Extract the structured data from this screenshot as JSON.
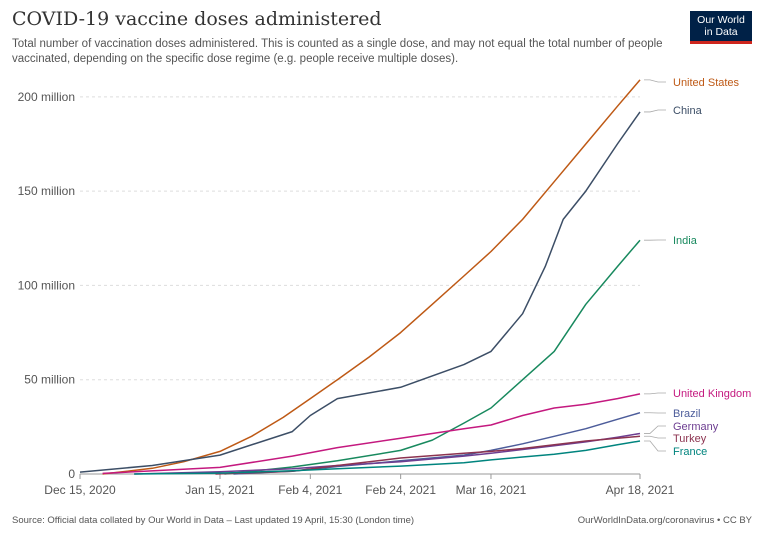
{
  "header": {
    "title": "COVID-19 vaccine doses administered",
    "subtitle": "Total number of vaccination doses administered. This is counted as a single dose, and may not equal the total number of people vaccinated, depending on the specific dose regime (e.g. people receive multiple doses).",
    "logo_line1": "Our World",
    "logo_line2": "in Data"
  },
  "footer": {
    "source": "Source: Official data collated by Our World in Data – Last updated 19 April, 15:30 (London time)",
    "credit": "OurWorldInData.org/coronavirus • CC BY"
  },
  "chart_data": {
    "type": "line",
    "title": "COVID-19 vaccine doses administered",
    "xlabel": "",
    "ylabel": "",
    "ylim": [
      0,
      210000000
    ],
    "grid": "horizontal dashed",
    "legend": "labels at right end of lines",
    "x_ticks": [
      "Dec 15, 2020",
      "Jan 15, 2021",
      "Feb 4, 2021",
      "Feb 24, 2021",
      "Mar 16, 2021",
      "Apr 18, 2021"
    ],
    "y_ticks": [
      "0",
      "50 million",
      "100 million",
      "150 million",
      "200 million"
    ],
    "y_tick_values": [
      0,
      50000000,
      100000000,
      150000000,
      200000000
    ],
    "series": [
      {
        "name": "United States",
        "color": "#be5915",
        "x": [
          "2020-12-20",
          "2020-12-31",
          "2021-01-07",
          "2021-01-15",
          "2021-01-22",
          "2021-01-29",
          "2021-02-04",
          "2021-02-10",
          "2021-02-17",
          "2021-02-24",
          "2021-03-03",
          "2021-03-10",
          "2021-03-16",
          "2021-03-23",
          "2021-03-30",
          "2021-04-06",
          "2021-04-13",
          "2021-04-18"
        ],
        "y": [
          0,
          3000000,
          6500000,
          12000000,
          20000000,
          30000000,
          40000000,
          50000000,
          62000000,
          75000000,
          90000000,
          105000000,
          118000000,
          135000000,
          155000000,
          175000000,
          195000000,
          209000000
        ]
      },
      {
        "name": "China",
        "color": "#3c4e66",
        "x": [
          "2020-12-15",
          "2020-12-31",
          "2021-01-15",
          "2021-01-31",
          "2021-02-04",
          "2021-02-10",
          "2021-02-24",
          "2021-03-10",
          "2021-03-16",
          "2021-03-23",
          "2021-03-28",
          "2021-04-01",
          "2021-04-06",
          "2021-04-13",
          "2021-04-18"
        ],
        "y": [
          1000000,
          4500000,
          10000000,
          22500000,
          31000000,
          40000000,
          46000000,
          58000000,
          65000000,
          85000000,
          110000000,
          135000000,
          150000000,
          175000000,
          192000000
        ]
      },
      {
        "name": "India",
        "color": "#18895e",
        "x": [
          "2021-01-16",
          "2021-01-31",
          "2021-02-10",
          "2021-02-24",
          "2021-03-03",
          "2021-03-10",
          "2021-03-16",
          "2021-03-23",
          "2021-03-30",
          "2021-04-06",
          "2021-04-13",
          "2021-04-18"
        ],
        "y": [
          0,
          3700000,
          7000000,
          12500000,
          18000000,
          27000000,
          35000000,
          50000000,
          65000000,
          90000000,
          110000000,
          124000000
        ]
      },
      {
        "name": "United Kingdom",
        "color": "#c4197f",
        "x": [
          "2020-12-20",
          "2021-01-15",
          "2021-01-31",
          "2021-02-10",
          "2021-02-24",
          "2021-03-10",
          "2021-03-16",
          "2021-03-23",
          "2021-03-30",
          "2021-04-06",
          "2021-04-13",
          "2021-04-18"
        ],
        "y": [
          300000,
          3500000,
          9500000,
          14000000,
          19000000,
          24000000,
          26000000,
          31000000,
          35000000,
          37000000,
          40000000,
          42500000
        ]
      },
      {
        "name": "Brazil",
        "color": "#4c5c9a",
        "x": [
          "2021-01-18",
          "2021-01-31",
          "2021-02-10",
          "2021-02-24",
          "2021-03-10",
          "2021-03-16",
          "2021-03-23",
          "2021-03-30",
          "2021-04-06",
          "2021-04-13",
          "2021-04-18"
        ],
        "y": [
          0,
          1500000,
          4000000,
          7000000,
          10000000,
          12500000,
          16000000,
          20000000,
          24000000,
          29000000,
          32500000
        ]
      },
      {
        "name": "Germany",
        "color": "#6d3e91",
        "x": [
          "2020-12-27",
          "2021-01-15",
          "2021-01-31",
          "2021-02-10",
          "2021-02-24",
          "2021-03-10",
          "2021-03-16",
          "2021-03-23",
          "2021-03-30",
          "2021-04-06",
          "2021-04-13",
          "2021-04-18"
        ],
        "y": [
          0,
          1200000,
          2800000,
          4500000,
          6500000,
          9500000,
          11000000,
          13000000,
          15000000,
          17000000,
          19500000,
          21500000
        ]
      },
      {
        "name": "Turkey",
        "color": "#8c3350",
        "x": [
          "2021-01-14",
          "2021-01-31",
          "2021-02-10",
          "2021-02-24",
          "2021-03-10",
          "2021-03-16",
          "2021-03-23",
          "2021-03-30",
          "2021-04-06",
          "2021-04-13",
          "2021-04-18"
        ],
        "y": [
          0,
          1500000,
          4500000,
          8500000,
          11000000,
          12000000,
          13500000,
          15500000,
          17500000,
          19000000,
          20000000
        ]
      },
      {
        "name": "France",
        "color": "#00847e",
        "x": [
          "2020-12-27",
          "2021-01-15",
          "2021-01-31",
          "2021-02-10",
          "2021-02-24",
          "2021-03-10",
          "2021-03-16",
          "2021-03-23",
          "2021-03-30",
          "2021-04-06",
          "2021-04-13",
          "2021-04-18"
        ],
        "y": [
          0,
          500000,
          1700000,
          2800000,
          4200000,
          6000000,
          7500000,
          9000000,
          10500000,
          12500000,
          15500000,
          17500000
        ]
      }
    ]
  }
}
